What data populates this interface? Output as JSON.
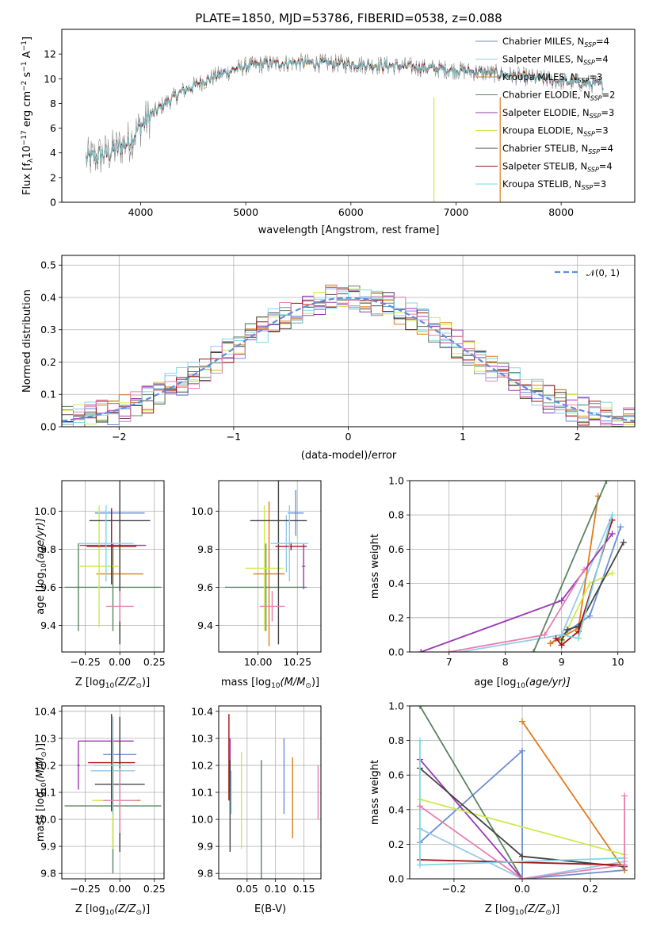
{
  "figure_title": "PLATE=1850, MJD=53786, FIBERID=0538, z=0.088",
  "colors": {
    "Chabrier MILES": "#6a8fd6",
    "Salpeter MILES": "#9bc9e9",
    "Kroupa MILES": "#e07b1b",
    "Chabrier ELODIE": "#5b8462",
    "Salpeter ELODIE": "#9b38b3",
    "Kroupa ELODIE": "#cfe94e",
    "Chabrier STELIB": "#444444",
    "Salpeter STELIB": "#a31414",
    "Kroupa STELIB": "#7dd8e4",
    "extra_pink": "#e680b0",
    "normal": "#5b8ee0",
    "data": "#8c8c8c"
  },
  "chart_data": [
    {
      "id": "spectrum",
      "type": "line",
      "xlabel": "wavelength [Angstrom, rest frame]",
      "ylabel": "Flux [f",
      "ylabel_parts": [
        "Flux [f",
        "λ",
        "10",
        "−17",
        " erg cm",
        "−2",
        " s",
        "−1",
        " A",
        "−1",
        "]"
      ],
      "xlim": [
        3250,
        8700
      ],
      "ylim": [
        0,
        14
      ],
      "xticks": [
        4000,
        5000,
        6000,
        7000,
        8000
      ],
      "yticks": [
        0,
        2,
        4,
        6,
        8,
        10,
        12
      ],
      "grid": false,
      "legend_position": "right",
      "continuum": {
        "x": [
          3500,
          3700,
          3900,
          4000,
          4200,
          4400,
          4600,
          4800,
          5000,
          5200,
          5500,
          6000,
          6500,
          7000,
          7500,
          8000,
          8400
        ],
        "y": [
          3.5,
          4.0,
          5.0,
          6.2,
          7.8,
          9.0,
          9.8,
          10.5,
          11.0,
          11.2,
          11.3,
          11.2,
          11.0,
          10.7,
          10.3,
          9.8,
          9.5
        ]
      },
      "legend": [
        {
          "label": "Chabrier MILES, N",
          "sub": "SSP",
          "suffix": "=4"
        },
        {
          "label": "Salpeter MILES, N",
          "sub": "SSP",
          "suffix": "=4"
        },
        {
          "label": "Kroupa MILES, N",
          "sub": "SSP",
          "suffix": "=3"
        },
        {
          "label": "Chabrier ELODIE, N",
          "sub": "SSP",
          "suffix": "=2"
        },
        {
          "label": "Salpeter ELODIE, N",
          "sub": "SSP",
          "suffix": "=3"
        },
        {
          "label": "Kroupa ELODIE, N",
          "sub": "SSP",
          "suffix": "=3"
        },
        {
          "label": "Chabrier STELIB, N",
          "sub": "SSP",
          "suffix": "=4"
        },
        {
          "label": "Salpeter STELIB, N",
          "sub": "SSP",
          "suffix": "=4"
        },
        {
          "label": "Kroupa STELIB, N",
          "sub": "SSP",
          "suffix": "=3"
        }
      ],
      "legend_colors": [
        "#6a8fd6",
        "#9bc9e9",
        "#e07b1b",
        "#5b8462",
        "#9b38b3",
        "#cfe94e",
        "#444444",
        "#a31414",
        "#7dd8e4"
      ],
      "vertical_lines": [
        {
          "x": 6790,
          "color": "#cfe94e"
        },
        {
          "x": 7420,
          "color": "#e07b1b"
        }
      ]
    },
    {
      "id": "residuals",
      "type": "histogram",
      "xlabel": "(data-model)/error",
      "ylabel": "Normed distribution",
      "xlim": [
        -2.5,
        2.5
      ],
      "ylim": [
        0,
        0.53
      ],
      "xticks": [
        -2,
        -1,
        0,
        1,
        2
      ],
      "xtick_labels": [
        "−2",
        "−1",
        "0",
        "1",
        "2"
      ],
      "yticks": [
        0.0,
        0.1,
        0.2,
        0.3,
        0.4,
        0.5
      ],
      "ytick_labels": [
        "0.0",
        "0.1",
        "0.2",
        "0.3",
        "0.4",
        "0.5"
      ],
      "grid": true,
      "legend_label": "𝒩(0, 1)",
      "legend_position": "top-right",
      "bin_width": 0.1
    },
    {
      "id": "age_vs_Z",
      "type": "errorbar",
      "xlabel": "Z [log",
      "xlabel_parts": [
        "Z [log",
        "10",
        "(Z/Z",
        "⊙",
        ")]"
      ],
      "ylabel": "age  [log",
      "ylabel_parts": [
        "age  [log",
        "10",
        "(age/yr)]"
      ],
      "xlim": [
        -0.42,
        0.32
      ],
      "ylim": [
        9.26,
        10.16
      ],
      "xticks": [
        -0.25,
        0.0,
        0.25
      ],
      "xtick_labels": [
        "−0.25",
        "0.00",
        "0.25"
      ],
      "yticks": [
        9.4,
        9.6,
        9.8,
        10.0
      ],
      "ytick_labels": [
        "9.4",
        "9.6",
        "9.8",
        "10.0"
      ],
      "points": [
        {
          "series": "Chabrier MILES",
          "x": 0.0,
          "y": 9.99,
          "xerr": 0.18,
          "yerr": 0.1
        },
        {
          "series": "Salpeter MILES",
          "x": 0.0,
          "y": 9.82,
          "xerr": 0.18,
          "yerr": 0.14
        },
        {
          "series": "Kroupa MILES",
          "x": 0.0,
          "y": 9.67,
          "xerr": 0.17,
          "yerr": 0.35
        },
        {
          "series": "Chabrier ELODIE",
          "x": -0.05,
          "y": 9.6,
          "xerr": 0.35,
          "yerr": 0.23
        },
        {
          "series": "Salpeter ELODIE",
          "x": -0.05,
          "y": 9.82,
          "xerr": 0.24,
          "yerr": 0.01
        },
        {
          "series": "Kroupa ELODIE",
          "x": -0.15,
          "y": 9.71,
          "xerr": 0.14,
          "yerr": 0.32
        },
        {
          "series": "Chabrier STELIB",
          "x": 0.0,
          "y": 9.95,
          "xerr": 0.22,
          "yerr": 0.65
        },
        {
          "series": "Salpeter STELIB",
          "x": -0.06,
          "y": 9.815,
          "xerr": 0.18,
          "yerr": 0.2
        },
        {
          "series": "Kroupa STELIB",
          "x": -0.1,
          "y": 9.83,
          "xerr": 0.2,
          "yerr": 0.2
        },
        {
          "series": "extra_pink",
          "x": 0.0,
          "y": 9.5,
          "xerr": 0.1,
          "yerr": 0.08
        },
        {
          "series": "Chabrier ELODIE",
          "x": -0.3,
          "y": 9.6,
          "xerr": 0.01,
          "yerr": 0.23
        }
      ]
    },
    {
      "id": "age_vs_mass",
      "type": "errorbar",
      "xlabel": "mass [log",
      "xlabel_parts": [
        "mass [log",
        "10",
        "(M/M",
        "⊙",
        ")]"
      ],
      "xlim": [
        9.75,
        10.4
      ],
      "ylim": [
        9.26,
        10.16
      ],
      "xticks": [
        10.0,
        10.25
      ],
      "xtick_labels": [
        "10.00",
        "10.25"
      ],
      "yticks": [
        9.4,
        9.6,
        9.8,
        10.0
      ],
      "ytick_labels": [
        "9.4",
        "9.6",
        "9.8",
        "10.0"
      ],
      "points": [
        {
          "series": "Chabrier MILES",
          "x": 10.24,
          "y": 9.99,
          "xerr": 0.05,
          "yerr": 0.12
        },
        {
          "series": "Salpeter MILES",
          "x": 10.18,
          "y": 9.83,
          "xerr": 0.08,
          "yerr": 0.15
        },
        {
          "series": "Kroupa MILES",
          "x": 10.07,
          "y": 9.67,
          "xerr": 0.1,
          "yerr": 0.38
        },
        {
          "series": "Chabrier ELODIE",
          "x": 10.05,
          "y": 9.6,
          "xerr": 0.26,
          "yerr": 0.23
        },
        {
          "series": "Salpeter ELODIE",
          "x": 10.29,
          "y": 9.71,
          "xerr": 0.01,
          "yerr": 0.12
        },
        {
          "series": "Kroupa ELODIE",
          "x": 10.04,
          "y": 9.7,
          "xerr": 0.12,
          "yerr": 0.33
        },
        {
          "series": "Chabrier STELIB",
          "x": 10.13,
          "y": 9.95,
          "xerr": 0.18,
          "yerr": 0.65
        },
        {
          "series": "Salpeter STELIB",
          "x": 10.21,
          "y": 9.815,
          "xerr": 0.1,
          "yerr": 0.02
        },
        {
          "series": "Kroupa STELIB",
          "x": 10.2,
          "y": 9.83,
          "xerr": 0.12,
          "yerr": 0.2
        },
        {
          "series": "extra_pink",
          "x": 10.09,
          "y": 9.5,
          "xerr": 0.08,
          "yerr": 0.08
        }
      ]
    },
    {
      "id": "mass_weight_vs_age",
      "type": "line",
      "xlabel": "age  [log",
      "xlabel_parts": [
        "age  [log",
        "10",
        "(age/yr)]"
      ],
      "ylabel": "mass weight",
      "xlim": [
        6.3,
        10.3
      ],
      "ylim": [
        0,
        1.0
      ],
      "xticks": [
        7,
        8,
        9,
        10
      ],
      "yticks": [
        0.0,
        0.2,
        0.4,
        0.6,
        0.8,
        1.0
      ],
      "ytick_labels": [
        "0.0",
        "0.2",
        "0.4",
        "0.6",
        "0.8",
        "1.0"
      ],
      "grid": true,
      "series": [
        {
          "name": "Chabrier MILES",
          "x": [
            8.8,
            9.5,
            10.05
          ],
          "y": [
            0.05,
            0.21,
            0.73
          ]
        },
        {
          "name": "Salpeter MILES",
          "x": [
            7.2,
            9.0,
            9.9
          ],
          "y": [
            0.0,
            0.1,
            0.8
          ]
        },
        {
          "name": "Kroupa MILES",
          "x": [
            8.8,
            9.3,
            9.65
          ],
          "y": [
            0.05,
            0.14,
            0.91
          ]
        },
        {
          "name": "Chabrier ELODIE",
          "x": [
            8.5,
            9.8
          ],
          "y": [
            0.0,
            1.0
          ]
        },
        {
          "name": "Salpeter ELODIE",
          "x": [
            6.5,
            9.0,
            9.9
          ],
          "y": [
            0.0,
            0.3,
            0.69
          ]
        },
        {
          "name": "Kroupa ELODIE",
          "x": [
            9.0,
            9.5,
            9.9
          ],
          "y": [
            0.06,
            0.4,
            0.46
          ]
        },
        {
          "name": "Chabrier STELIB",
          "x": [
            9.0,
            9.1,
            9.3,
            10.1
          ],
          "y": [
            0.07,
            0.13,
            0.15,
            0.64
          ]
        },
        {
          "name": "Salpeter STELIB",
          "x": [
            8.9,
            9.0,
            9.3,
            9.9
          ],
          "y": [
            0.08,
            0.04,
            0.12,
            0.77
          ]
        },
        {
          "name": "Kroupa STELIB",
          "x": [
            9.0,
            9.3,
            9.9
          ],
          "y": [
            0.1,
            0.08,
            0.8
          ]
        },
        {
          "name": "extra_pink",
          "x": [
            7.0,
            8.7,
            9.4
          ],
          "y": [
            0.0,
            0.1,
            0.48
          ]
        }
      ]
    },
    {
      "id": "mass_vs_Z",
      "type": "errorbar",
      "xlabel": "Z [log",
      "xlabel_parts": [
        "Z [log",
        "10",
        "(Z/Z",
        "⊙",
        ")]"
      ],
      "ylabel": "mass [log",
      "ylabel_parts": [
        "mass [log",
        "10",
        "(M/M",
        "⊙",
        ")]"
      ],
      "xlim": [
        -0.42,
        0.32
      ],
      "ylim": [
        9.78,
        10.42
      ],
      "xticks": [
        -0.25,
        0.0,
        0.25
      ],
      "xtick_labels": [
        "−0.25",
        "0.00",
        "0.25"
      ],
      "yticks": [
        9.8,
        9.9,
        10.0,
        10.1,
        10.2,
        10.3,
        10.4
      ],
      "ytick_labels": [
        "9.8",
        "9.9",
        "10.0",
        "10.1",
        "10.2",
        "10.3",
        "10.4"
      ],
      "points": [
        {
          "series": "Chabrier MILES",
          "x": 0.0,
          "y": 10.24,
          "xerr": 0.12,
          "yerr": 0.05
        },
        {
          "series": "Salpeter MILES",
          "x": -0.05,
          "y": 10.18,
          "xerr": 0.16,
          "yerr": 0.12
        },
        {
          "series": "Kroupa MILES",
          "x": 0.0,
          "y": 10.07,
          "xerr": 0.15,
          "yerr": 0.13
        },
        {
          "series": "Chabrier ELODIE",
          "x": -0.05,
          "y": 10.05,
          "xerr": 0.35,
          "yerr": 0.25
        },
        {
          "series": "Salpeter ELODIE",
          "x": -0.1,
          "y": 10.29,
          "xerr": 0.2,
          "yerr": 0.0
        },
        {
          "series": "Kroupa ELODIE",
          "x": -0.05,
          "y": 10.07,
          "xerr": 0.15,
          "yerr": 0.18
        },
        {
          "series": "Chabrier STELIB",
          "x": 0.0,
          "y": 10.13,
          "xerr": 0.18,
          "yerr": 0.25
        },
        {
          "series": "Salpeter STELIB",
          "x": -0.06,
          "y": 10.21,
          "xerr": 0.17,
          "yerr": 0.18
        },
        {
          "series": "Kroupa STELIB",
          "x": -0.05,
          "y": 10.2,
          "xerr": 0.14,
          "yerr": 0.18
        },
        {
          "series": "extra_pink",
          "x": 0.0,
          "y": 10.07,
          "xerr": 0.12,
          "yerr": 0.12
        },
        {
          "series": "Salpeter ELODIE",
          "x": -0.3,
          "y": 10.2,
          "xerr": 0.01,
          "yerr": 0.09
        }
      ]
    },
    {
      "id": "mass_vs_EBV",
      "type": "errorbar",
      "xlabel": "E(B-V)",
      "xlim": [
        0.0,
        0.18
      ],
      "ylim": [
        9.78,
        10.42
      ],
      "xticks": [
        0.05,
        0.1,
        0.15
      ],
      "xtick_labels": [
        "0.05",
        "0.10",
        "0.15"
      ],
      "yticks": [
        9.8,
        9.9,
        10.0,
        10.1,
        10.2,
        10.3,
        10.4
      ],
      "ytick_labels": [
        "9.8",
        "9.9",
        "10.0",
        "10.1",
        "10.2",
        "10.3",
        "10.4"
      ],
      "points": [
        {
          "series": "Salpeter STELIB",
          "x": 0.018,
          "y": 10.23,
          "yerr": 0.16
        },
        {
          "series": "Salpeter ELODIE",
          "x": 0.02,
          "y": 10.2,
          "yerr": 0.1
        },
        {
          "series": "Chabrier STELIB",
          "x": 0.02,
          "y": 10.05,
          "yerr": 0.17
        },
        {
          "series": "Kroupa STELIB",
          "x": 0.022,
          "y": 10.1,
          "yerr": 0.08
        },
        {
          "series": "Kroupa ELODIE",
          "x": 0.04,
          "y": 10.07,
          "yerr": 0.18
        },
        {
          "series": "Chabrier ELODIE",
          "x": 0.075,
          "y": 10.0,
          "yerr": 0.22
        },
        {
          "series": "Chabrier MILES",
          "x": 0.115,
          "y": 10.16,
          "yerr": 0.14
        },
        {
          "series": "Kroupa MILES",
          "x": 0.13,
          "y": 10.08,
          "yerr": 0.15
        },
        {
          "series": "extra_pink",
          "x": 0.175,
          "y": 10.1,
          "yerr": 0.1
        }
      ]
    },
    {
      "id": "mass_weight_vs_Z",
      "type": "line",
      "xlabel": "Z [log",
      "xlabel_parts": [
        "Z [log",
        "10",
        "(Z/Z",
        "⊙",
        ")]"
      ],
      "ylabel": "mass weight",
      "xlim": [
        -0.33,
        0.33
      ],
      "ylim": [
        0,
        1.0
      ],
      "xticks": [
        -0.2,
        0.0,
        0.2
      ],
      "xtick_labels": [
        "−0.2",
        "0.0",
        "0.2"
      ],
      "yticks": [
        0.0,
        0.2,
        0.4,
        0.6,
        0.8,
        1.0
      ],
      "ytick_labels": [
        "0.0",
        "0.2",
        "0.4",
        "0.6",
        "0.8",
        "1.0"
      ],
      "grid": true,
      "series": [
        {
          "name": "Chabrier MILES",
          "x": [
            -0.3,
            0.0,
            0.0,
            0.3
          ],
          "y": [
            0.21,
            0.74,
            0.0,
            0.05
          ]
        },
        {
          "name": "Salpeter MILES",
          "x": [
            -0.3,
            0.0,
            0.3
          ],
          "y": [
            0.29,
            0.0,
            0.1
          ]
        },
        {
          "name": "Kroupa MILES",
          "x": [
            0.0,
            0.3
          ],
          "y": [
            0.91,
            0.05
          ]
        },
        {
          "name": "Chabrier ELODIE",
          "x": [
            -0.3,
            0.0
          ],
          "y": [
            1.0,
            0.0
          ]
        },
        {
          "name": "Salpeter ELODIE",
          "x": [
            -0.3,
            0.0
          ],
          "y": [
            0.69,
            0.0
          ]
        },
        {
          "name": "Kroupa ELODIE",
          "x": [
            -0.3,
            0.3
          ],
          "y": [
            0.46,
            0.14
          ]
        },
        {
          "name": "Chabrier STELIB",
          "x": [
            -0.3,
            0.0,
            0.3
          ],
          "y": [
            0.64,
            0.13,
            0.07
          ]
        },
        {
          "name": "Salpeter STELIB",
          "x": [
            -0.3,
            0.3
          ],
          "y": [
            0.11,
            0.08
          ]
        },
        {
          "name": "Kroupa STELIB",
          "x": [
            -0.3,
            -0.3,
            0.3
          ],
          "y": [
            0.8,
            0.08,
            0.12
          ]
        },
        {
          "name": "extra_pink",
          "x": [
            -0.3,
            0.0,
            0.3,
            0.3
          ],
          "y": [
            0.42,
            0.0,
            0.08,
            0.48
          ]
        }
      ]
    }
  ]
}
